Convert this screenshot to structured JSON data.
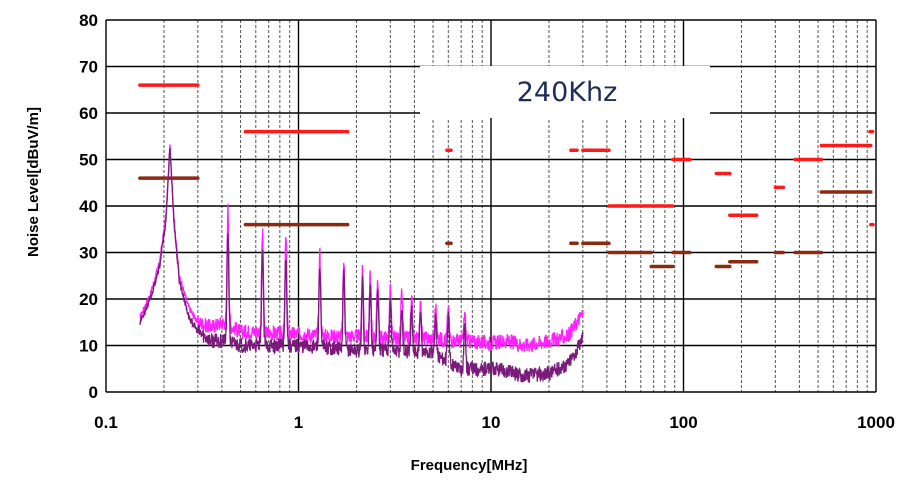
{
  "chart_data": {
    "type": "line",
    "xscale": "log",
    "xlim": [
      0.1,
      1000
    ],
    "ylim": [
      0,
      80
    ],
    "xlabel": "Frequency[MHz]",
    "ylabel": "Noise Level[dBuV/m]",
    "x_tick_labels": [
      "0.1",
      "1",
      "10",
      "100",
      "1000"
    ],
    "x_ticks": [
      0.1,
      1,
      10,
      100,
      1000
    ],
    "y_ticks": [
      0,
      10,
      20,
      30,
      40,
      50,
      60,
      70,
      80
    ],
    "annotation": "240Khz",
    "colors": {
      "upper_limit": "#ff1a1a",
      "lower_limit": "#8b2a10",
      "peak_trace": "#ff22ff",
      "avg_trace": "#7a1a7a",
      "grid_major": "#000000",
      "grid_minor": "#555555"
    },
    "limit_lines_upper": [
      {
        "x1": 0.15,
        "x2": 0.3,
        "y": 66
      },
      {
        "x1": 0.53,
        "x2": 1.8,
        "y": 56
      },
      {
        "x1": 5.9,
        "x2": 6.2,
        "y": 52
      },
      {
        "x1": 26,
        "x2": 28,
        "y": 52
      },
      {
        "x1": 30,
        "x2": 41,
        "y": 52
      },
      {
        "x1": 41,
        "x2": 88,
        "y": 40
      },
      {
        "x1": 88,
        "x2": 108,
        "y": 50
      },
      {
        "x1": 148,
        "x2": 174,
        "y": 47
      },
      {
        "x1": 174,
        "x2": 240,
        "y": 38
      },
      {
        "x1": 300,
        "x2": 330,
        "y": 44
      },
      {
        "x1": 380,
        "x2": 520,
        "y": 50
      },
      {
        "x1": 520,
        "x2": 940,
        "y": 53
      },
      {
        "x1": 930,
        "x2": 960,
        "y": 56
      },
      {
        "x1": 940,
        "x2": 965,
        "y": 36
      }
    ],
    "limit_lines_lower": [
      {
        "x1": 0.15,
        "x2": 0.3,
        "y": 46
      },
      {
        "x1": 0.53,
        "x2": 1.8,
        "y": 36
      },
      {
        "x1": 5.9,
        "x2": 6.2,
        "y": 32
      },
      {
        "x1": 26,
        "x2": 28,
        "y": 32
      },
      {
        "x1": 30,
        "x2": 41,
        "y": 32
      },
      {
        "x1": 41,
        "x2": 68,
        "y": 30
      },
      {
        "x1": 68,
        "x2": 88,
        "y": 27
      },
      {
        "x1": 88,
        "x2": 108,
        "y": 30
      },
      {
        "x1": 148,
        "x2": 174,
        "y": 27
      },
      {
        "x1": 174,
        "x2": 240,
        "y": 28
      },
      {
        "x1": 300,
        "x2": 330,
        "y": 30
      },
      {
        "x1": 380,
        "x2": 520,
        "y": 30
      },
      {
        "x1": 520,
        "x2": 940,
        "y": 43
      }
    ],
    "peaks": [
      {
        "x": 0.215,
        "peak": 53,
        "avg": 53
      },
      {
        "x": 0.43,
        "peak": 39.5,
        "avg": 35
      },
      {
        "x": 0.65,
        "peak": 34,
        "avg": 31
      },
      {
        "x": 0.86,
        "peak": 33,
        "avg": 30
      },
      {
        "x": 1.29,
        "peak": 30,
        "avg": 27
      },
      {
        "x": 1.72,
        "peak": 28,
        "avg": 25.5
      },
      {
        "x": 2.15,
        "peak": 26,
        "avg": 24
      },
      {
        "x": 2.36,
        "peak": 25,
        "avg": 23
      },
      {
        "x": 2.58,
        "peak": 24.5,
        "avg": 22
      },
      {
        "x": 3.0,
        "peak": 22,
        "avg": 20
      },
      {
        "x": 3.44,
        "peak": 21,
        "avg": 18
      },
      {
        "x": 3.87,
        "peak": 20,
        "avg": 17.5
      },
      {
        "x": 4.3,
        "peak": 19,
        "avg": 17
      },
      {
        "x": 5.16,
        "peak": 18.5,
        "avg": 16
      },
      {
        "x": 6.0,
        "peak": 18,
        "avg": 16
      },
      {
        "x": 7.3,
        "peak": 17,
        "avg": 15
      }
    ],
    "series": [
      {
        "name": "peak",
        "x": [
          0.15,
          0.17,
          0.19,
          0.205,
          0.215,
          0.225,
          0.24,
          0.27,
          0.3,
          0.35,
          0.41,
          0.5,
          0.6,
          0.8,
          1.0,
          1.5,
          2.0,
          3.0,
          4.0,
          5.0,
          7.0,
          10,
          12,
          15,
          20,
          25,
          28,
          30
        ],
        "y": [
          16,
          21,
          28,
          38,
          53,
          38,
          25,
          18,
          15,
          14,
          15,
          13,
          13,
          12.5,
          12.5,
          12,
          12,
          11.5,
          11.5,
          11.5,
          11,
          10.5,
          11,
          10,
          11,
          12,
          15,
          17
        ]
      },
      {
        "name": "average",
        "x": [
          0.15,
          0.17,
          0.19,
          0.205,
          0.215,
          0.225,
          0.24,
          0.27,
          0.3,
          0.35,
          0.41,
          0.5,
          0.6,
          0.8,
          1.0,
          1.5,
          2.0,
          3.0,
          4.0,
          5.0,
          7.0,
          10,
          12,
          15,
          20,
          25,
          28,
          30
        ],
        "y": [
          15,
          20,
          27,
          37,
          53,
          37,
          24,
          16,
          13,
          11,
          11,
          10,
          10,
          10,
          10,
          9.5,
          9,
          9,
          8.5,
          8.5,
          5,
          5,
          4.5,
          3.5,
          4,
          6,
          9,
          12
        ]
      }
    ]
  }
}
